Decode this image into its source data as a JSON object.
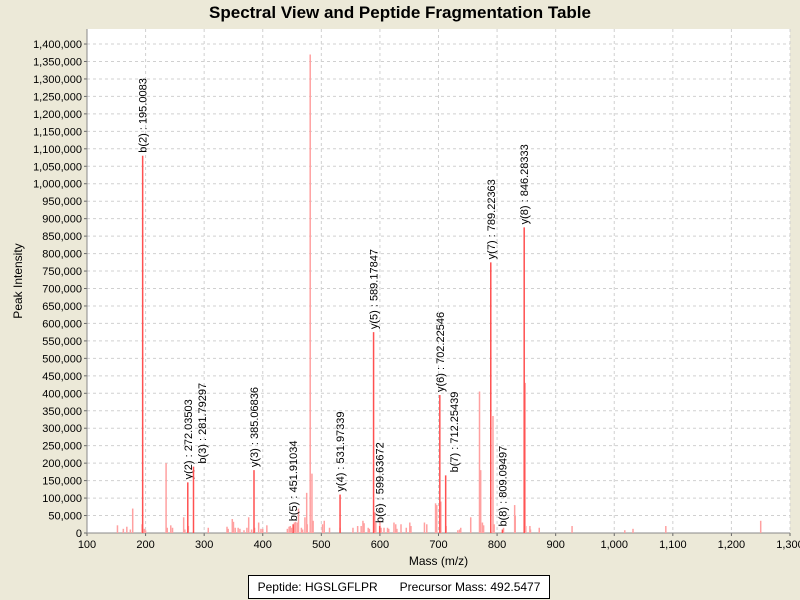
{
  "chart_data": {
    "type": "bar",
    "title": "Spectral View and Peptide Fragmentation Table",
    "xlabel": "Mass (m/z)",
    "ylabel": "Peak Intensity",
    "xlim": [
      100,
      1300
    ],
    "ylim": [
      0,
      1443000
    ],
    "xticks": [
      100,
      200,
      300,
      400,
      500,
      600,
      700,
      800,
      900,
      1000,
      1100,
      1200,
      1300
    ],
    "xtick_labels": [
      "100",
      "200",
      "300",
      "400",
      "500",
      "600",
      "700",
      "800",
      "900",
      "1,000",
      "1,100",
      "1,200",
      "1,300"
    ],
    "yticks": [
      0,
      50000,
      100000,
      150000,
      200000,
      250000,
      300000,
      350000,
      400000,
      450000,
      500000,
      550000,
      600000,
      650000,
      700000,
      750000,
      800000,
      850000,
      900000,
      950000,
      1000000,
      1050000,
      1100000,
      1150000,
      1200000,
      1250000,
      1300000,
      1350000,
      1400000
    ],
    "ytick_labels": [
      "0",
      "50,000",
      "100,000",
      "150,000",
      "200,000",
      "250,000",
      "300,000",
      "350,000",
      "400,000",
      "450,000",
      "500,000",
      "550,000",
      "600,000",
      "650,000",
      "700,000",
      "750,000",
      "800,000",
      "850,000",
      "900,000",
      "950,000",
      "1,000,000",
      "1,050,000",
      "1,100,000",
      "1,150,000",
      "1,200,000",
      "1,250,000",
      "1,300,000",
      "1,350,000",
      "1,400,000"
    ],
    "grid": true,
    "peaks": [
      [
        152,
        22000
      ],
      [
        162,
        12000
      ],
      [
        168,
        18000
      ],
      [
        174,
        10000
      ],
      [
        178,
        70000
      ],
      [
        194,
        25000
      ],
      [
        198,
        12000
      ],
      [
        200,
        8000
      ],
      [
        235,
        200000
      ],
      [
        237,
        15000
      ],
      [
        243,
        22000
      ],
      [
        246,
        15000
      ],
      [
        265,
        45000
      ],
      [
        267,
        10000
      ],
      [
        273,
        20000
      ],
      [
        307,
        15000
      ],
      [
        339,
        18000
      ],
      [
        341,
        12000
      ],
      [
        348,
        40000
      ],
      [
        350,
        32000
      ],
      [
        353,
        15000
      ],
      [
        358,
        15000
      ],
      [
        361,
        12000
      ],
      [
        368,
        8000
      ],
      [
        373,
        15000
      ],
      [
        376,
        45000
      ],
      [
        381,
        10000
      ],
      [
        386,
        15000
      ],
      [
        393,
        30000
      ],
      [
        397,
        12000
      ],
      [
        400,
        12000
      ],
      [
        407,
        22000
      ],
      [
        442,
        12000
      ],
      [
        445,
        18000
      ],
      [
        447,
        20000
      ],
      [
        449,
        15000
      ],
      [
        454,
        30000
      ],
      [
        456,
        32000
      ],
      [
        459,
        30000
      ],
      [
        461,
        70000
      ],
      [
        466,
        15000
      ],
      [
        468,
        10000
      ],
      [
        472,
        45000
      ],
      [
        475,
        115000
      ],
      [
        476,
        25000
      ],
      [
        481,
        1370000
      ],
      [
        484,
        170000
      ],
      [
        486,
        35000
      ],
      [
        502,
        25000
      ],
      [
        505,
        35000
      ],
      [
        514,
        15000
      ],
      [
        532,
        15000
      ],
      [
        554,
        15000
      ],
      [
        562,
        20000
      ],
      [
        568,
        20000
      ],
      [
        571,
        35000
      ],
      [
        573,
        28000
      ],
      [
        580,
        15000
      ],
      [
        582,
        12000
      ],
      [
        591,
        60000
      ],
      [
        593,
        30000
      ],
      [
        600,
        35000
      ],
      [
        602,
        15000
      ],
      [
        607,
        15000
      ],
      [
        613,
        15000
      ],
      [
        615,
        12000
      ],
      [
        624,
        30000
      ],
      [
        627,
        25000
      ],
      [
        629,
        12000
      ],
      [
        636,
        25000
      ],
      [
        645,
        15000
      ],
      [
        651,
        30000
      ],
      [
        653,
        20000
      ],
      [
        676,
        30000
      ],
      [
        680,
        25000
      ],
      [
        695,
        85000
      ],
      [
        697,
        80000
      ],
      [
        704,
        90000
      ],
      [
        713,
        20000
      ],
      [
        733,
        8000
      ],
      [
        736,
        10000
      ],
      [
        738,
        15000
      ],
      [
        755,
        45000
      ],
      [
        770,
        405000
      ],
      [
        772,
        180000
      ],
      [
        775,
        30000
      ],
      [
        777,
        22000
      ],
      [
        793,
        335000
      ],
      [
        795,
        25000
      ],
      [
        811,
        15000
      ],
      [
        830,
        80000
      ],
      [
        831,
        50000
      ],
      [
        848,
        430000
      ],
      [
        849,
        20000
      ],
      [
        856,
        20000
      ],
      [
        857,
        10000
      ],
      [
        872,
        15000
      ],
      [
        928,
        20000
      ],
      [
        1018,
        8000
      ],
      [
        1032,
        12000
      ],
      [
        1088,
        20000
      ],
      [
        1250,
        35000
      ]
    ],
    "annotations": [
      {
        "label": "b(2) : 195.0083",
        "mz": 195.0083,
        "intensity": 1080000
      },
      {
        "label": "y(2) : 272.03503",
        "mz": 272.03503,
        "intensity": 145000
      },
      {
        "label": "b(3) : 281.79297",
        "mz": 281.79297,
        "intensity": 190000
      },
      {
        "label": "y(3) : 385.06836",
        "mz": 385.06836,
        "intensity": 180000
      },
      {
        "label": "b(5) : 451.91034",
        "mz": 451.91034,
        "intensity": 25000
      },
      {
        "label": "y(4) : 531.97339",
        "mz": 531.97339,
        "intensity": 110000
      },
      {
        "label": "y(5) : 589.17847",
        "mz": 589.17847,
        "intensity": 575000
      },
      {
        "label": "b(6) : 599.63672",
        "mz": 599.63672,
        "intensity": 20000
      },
      {
        "label": "y(6) : 702.22546",
        "mz": 702.22546,
        "intensity": 395000
      },
      {
        "label": "b(7) : 712.25439",
        "mz": 712.25439,
        "intensity": 165000
      },
      {
        "label": "y(7) : 789.22363",
        "mz": 789.22363,
        "intensity": 775000
      },
      {
        "label": "b(8) : 809.09497",
        "mz": 809.09497,
        "intensity": 10000
      },
      {
        "label": "y(8) : 846.28333",
        "mz": 846.28333,
        "intensity": 875000
      }
    ],
    "colors": {
      "annotated": "#ff5050",
      "peak": "#ffa0a0",
      "grid": "#d0d0d0",
      "background": "#ece9d8"
    }
  },
  "info": {
    "peptide": "Peptide: HGSLGFLPR",
    "precursor": "Precursor Mass: 492.5477"
  }
}
